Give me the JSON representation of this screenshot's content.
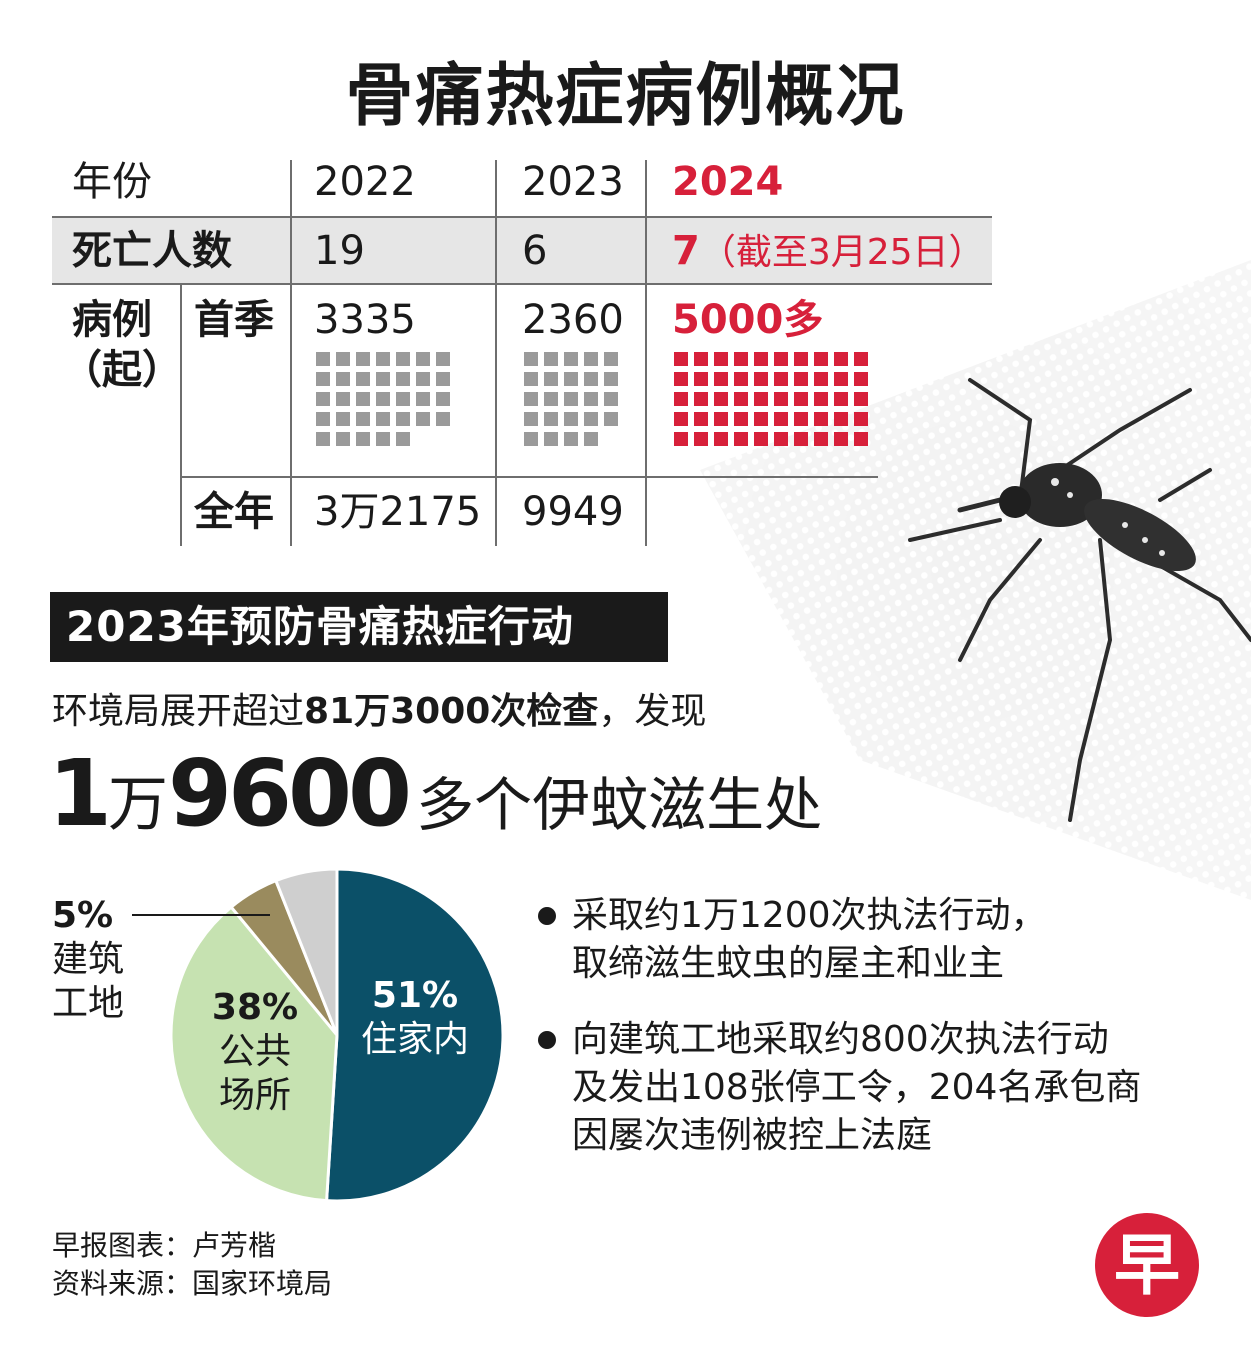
{
  "title": "骨痛热症病例概况",
  "table": {
    "year_header": "年份",
    "years": [
      "2022",
      "2023",
      "2024"
    ],
    "deaths_label": "死亡人数",
    "deaths": [
      "19",
      "6",
      "7"
    ],
    "deaths_note_2024": "（截至3月25日）",
    "cases_label_line1": "病例",
    "cases_label_line2": "（起）",
    "q1_label": "首季",
    "q1_values": [
      "3335",
      "2360",
      "5000多"
    ],
    "fullyear_label": "全年",
    "fullyear_values": [
      "3万2175",
      "9949"
    ]
  },
  "chart_data": [
    {
      "type": "table",
      "rows": [
        "死亡人数",
        "首季",
        "全年"
      ],
      "columns": [
        "2022",
        "2023",
        "2024"
      ],
      "values": [
        [
          "19",
          "6",
          "7（截至3月25日）"
        ],
        [
          "3335",
          "2360",
          "5000多"
        ],
        [
          "3万2175",
          "9949",
          ""
        ]
      ]
    },
    {
      "type": "pie",
      "slices": [
        {
          "label": "住家内",
          "value": 51
        },
        {
          "label": "公共场所",
          "value": 38
        },
        {
          "label": "建筑工地",
          "value": 5
        },
        {
          "label": "",
          "value": 6
        }
      ]
    }
  ],
  "section2": {
    "banner": "2023年预防骨痛热症行动",
    "inspect_pre": "环境局展开超过",
    "inspect_bold": "81万3000次检查",
    "inspect_post": "，发现",
    "big_1": "1",
    "big_unit": "万",
    "big_2": "9600",
    "big_tail": "多个伊蚊滋生处"
  },
  "pie_labels": {
    "home_pct": "51%",
    "home_label": "住家内",
    "public_pct": "38%",
    "public_label_1": "公共",
    "public_label_2": "场所",
    "construction_pct": "5%",
    "construction_label_1": "建筑",
    "construction_label_2": "工地"
  },
  "pie_colors": [
    "#0b5068",
    "#c6e2b1",
    "#9a8b5e",
    "#cfcfcf"
  ],
  "bullets": [
    {
      "line1": "采取约1万1200次执法行动，",
      "line2": "取缔滋生蚊虫的屋主和业主",
      "line3": ""
    },
    {
      "line1": "向建筑工地采取约800次执法行动",
      "line2": "及发出108张停工令，204名承包商",
      "line3": "因屡次违例被控上法庭"
    }
  ],
  "credits": {
    "line1": "早报图表：卢芳楷",
    "line2": "资料来源：国家环境局"
  },
  "logo_char": "早",
  "grid_counts": [
    33,
    24,
    50
  ]
}
